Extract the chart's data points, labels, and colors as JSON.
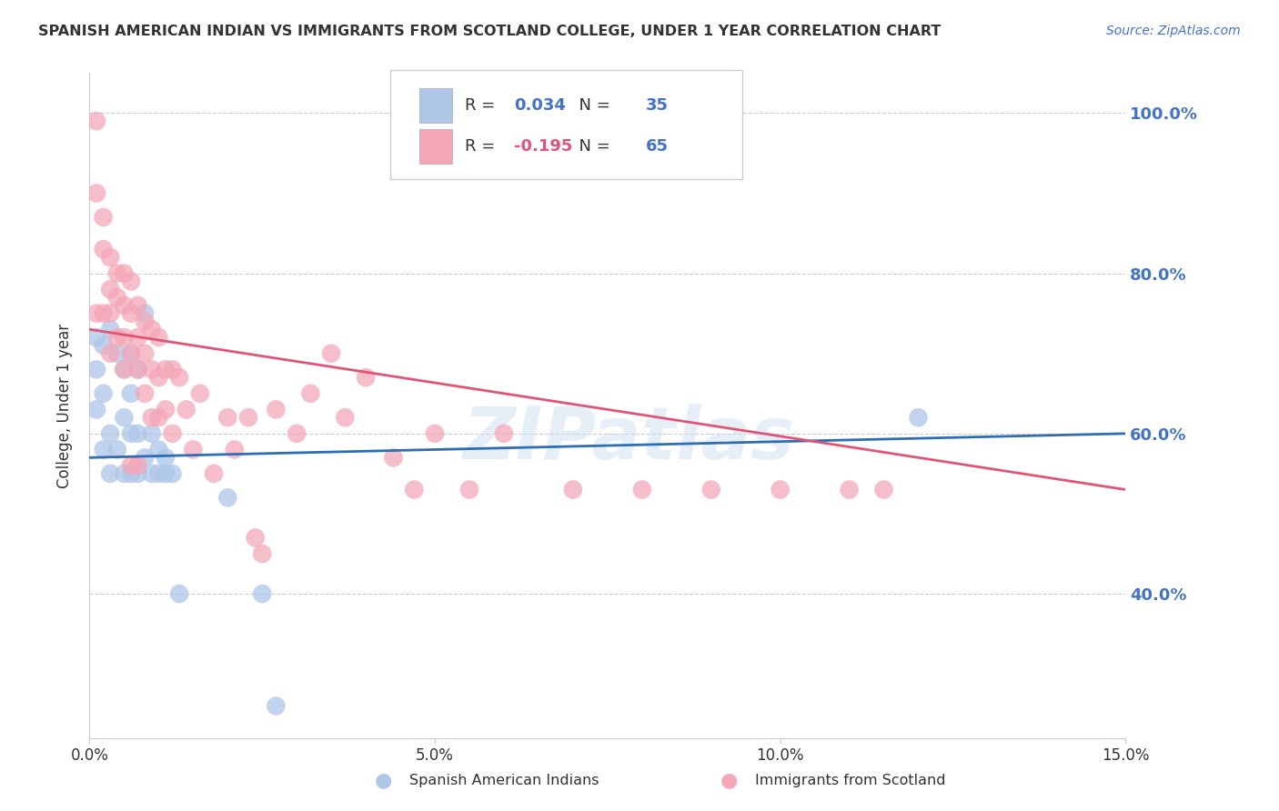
{
  "title": "SPANISH AMERICAN INDIAN VS IMMIGRANTS FROM SCOTLAND COLLEGE, UNDER 1 YEAR CORRELATION CHART",
  "source": "Source: ZipAtlas.com",
  "ylabel": "College, Under 1 year",
  "xlim": [
    0.0,
    0.15
  ],
  "ylim": [
    0.22,
    1.05
  ],
  "yticks": [
    0.4,
    0.6,
    0.8,
    1.0
  ],
  "ytick_labels": [
    "40.0%",
    "60.0%",
    "80.0%",
    "100.0%"
  ],
  "xticks": [
    0.0,
    0.05,
    0.1,
    0.15
  ],
  "xtick_labels": [
    "0.0%",
    "5.0%",
    "10.0%",
    "15.0%"
  ],
  "background_color": "#ffffff",
  "grid_color": "#cccccc",
  "watermark": "ZIPatlas",
  "series": [
    {
      "name": "Spanish American Indians",
      "R": "0.034",
      "R_val": 0.034,
      "N": 35,
      "R_color": "#4472c4",
      "color_fill": "#aec6e8",
      "color_line": "#2e6db4",
      "trend_x0": 0.0,
      "trend_y0": 0.57,
      "trend_x1": 0.15,
      "trend_y1": 0.6,
      "x": [
        0.001,
        0.001,
        0.001,
        0.002,
        0.002,
        0.002,
        0.003,
        0.003,
        0.003,
        0.004,
        0.004,
        0.005,
        0.005,
        0.005,
        0.006,
        0.006,
        0.006,
        0.006,
        0.007,
        0.007,
        0.007,
        0.008,
        0.008,
        0.009,
        0.009,
        0.01,
        0.01,
        0.011,
        0.011,
        0.012,
        0.013,
        0.02,
        0.025,
        0.12,
        0.027
      ],
      "y": [
        0.72,
        0.68,
        0.63,
        0.71,
        0.65,
        0.58,
        0.73,
        0.6,
        0.55,
        0.7,
        0.58,
        0.68,
        0.62,
        0.55,
        0.7,
        0.65,
        0.6,
        0.55,
        0.68,
        0.6,
        0.55,
        0.75,
        0.57,
        0.6,
        0.55,
        0.58,
        0.55,
        0.57,
        0.55,
        0.55,
        0.4,
        0.52,
        0.4,
        0.62,
        0.26
      ]
    },
    {
      "name": "Immigrants from Scotland",
      "R": "-0.195",
      "R_val": -0.195,
      "N": 65,
      "R_color": "#e05575",
      "color_fill": "#f4a7b9",
      "color_line": "#e05575",
      "trend_x0": 0.0,
      "trend_y0": 0.73,
      "trend_x1": 0.15,
      "trend_y1": 0.53,
      "x": [
        0.001,
        0.001,
        0.001,
        0.002,
        0.002,
        0.002,
        0.003,
        0.003,
        0.003,
        0.003,
        0.004,
        0.004,
        0.004,
        0.005,
        0.005,
        0.005,
        0.005,
        0.006,
        0.006,
        0.006,
        0.007,
        0.007,
        0.007,
        0.008,
        0.008,
        0.008,
        0.009,
        0.009,
        0.009,
        0.01,
        0.01,
        0.01,
        0.011,
        0.011,
        0.012,
        0.012,
        0.013,
        0.014,
        0.015,
        0.016,
        0.018,
        0.02,
        0.021,
        0.023,
        0.024,
        0.025,
        0.027,
        0.03,
        0.032,
        0.035,
        0.037,
        0.04,
        0.044,
        0.047,
        0.05,
        0.055,
        0.06,
        0.07,
        0.08,
        0.09,
        0.1,
        0.11,
        0.115,
        0.006,
        0.007
      ],
      "y": [
        0.99,
        0.9,
        0.75,
        0.87,
        0.83,
        0.75,
        0.82,
        0.78,
        0.75,
        0.7,
        0.8,
        0.77,
        0.72,
        0.8,
        0.76,
        0.72,
        0.68,
        0.79,
        0.75,
        0.7,
        0.76,
        0.72,
        0.68,
        0.74,
        0.7,
        0.65,
        0.73,
        0.68,
        0.62,
        0.72,
        0.67,
        0.62,
        0.68,
        0.63,
        0.68,
        0.6,
        0.67,
        0.63,
        0.58,
        0.65,
        0.55,
        0.62,
        0.58,
        0.62,
        0.47,
        0.45,
        0.63,
        0.6,
        0.65,
        0.7,
        0.62,
        0.67,
        0.57,
        0.53,
        0.6,
        0.53,
        0.6,
        0.53,
        0.53,
        0.53,
        0.53,
        0.53,
        0.53,
        0.56,
        0.56
      ]
    }
  ]
}
